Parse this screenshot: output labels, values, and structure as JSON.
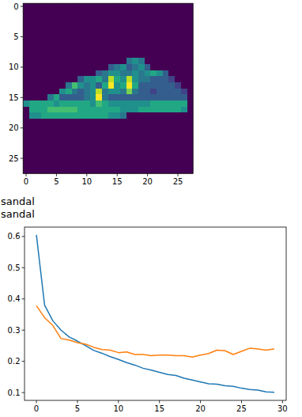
{
  "chart_data": [
    {
      "type": "heatmap",
      "cells": [
        [
          0,
          0,
          0,
          0,
          0,
          0,
          0,
          0,
          0,
          0,
          0,
          0,
          0,
          0,
          0,
          0,
          0,
          0,
          0,
          0,
          0,
          0,
          0,
          0,
          0,
          0,
          0,
          0
        ],
        [
          0,
          0,
          0,
          0,
          0,
          0,
          0,
          0,
          0,
          0,
          0,
          0,
          0,
          0,
          0,
          0,
          0,
          0,
          0,
          0,
          0,
          0,
          0,
          0,
          0,
          0,
          0,
          0
        ],
        [
          0,
          0,
          0,
          0,
          0,
          0,
          0,
          0,
          0,
          0,
          0,
          0,
          0,
          0,
          0,
          0,
          0,
          0,
          0,
          0,
          0,
          0,
          0,
          0,
          0,
          0,
          0,
          0
        ],
        [
          0,
          0,
          0,
          0,
          0,
          0,
          0,
          0,
          0,
          0,
          0,
          0,
          0,
          0,
          0,
          0,
          0,
          0,
          0,
          0,
          0,
          0,
          0,
          0,
          0,
          0,
          0,
          0
        ],
        [
          0,
          0,
          0,
          0,
          0,
          0,
          0,
          0,
          0,
          0,
          0,
          0,
          0,
          0,
          0,
          0,
          0,
          0,
          0,
          0,
          0,
          0,
          0,
          0,
          0,
          0,
          0,
          0
        ],
        [
          0,
          0,
          0,
          0,
          0,
          0,
          0,
          0,
          0,
          0,
          0,
          0,
          0,
          0,
          0,
          0,
          0,
          0,
          0,
          0,
          0,
          0,
          0,
          0,
          0,
          0,
          0,
          0
        ],
        [
          0,
          0,
          0,
          0,
          0,
          0,
          0,
          0,
          0,
          0,
          0,
          0,
          0,
          0,
          0,
          0,
          0,
          0,
          0,
          0,
          0,
          0,
          0,
          0,
          0,
          0,
          0,
          0
        ],
        [
          0,
          0,
          0,
          0,
          0,
          0,
          0,
          0,
          0,
          0,
          0,
          0,
          0,
          0,
          0,
          0,
          0,
          0,
          0,
          0,
          0,
          0,
          0,
          0,
          0,
          0,
          0,
          0
        ],
        [
          0,
          0,
          0,
          0,
          0,
          0,
          0,
          0,
          0,
          0,
          0,
          0,
          0,
          0,
          0,
          0,
          0,
          0,
          0,
          0,
          0,
          0,
          0,
          0,
          0,
          0,
          0,
          0
        ],
        [
          0,
          0,
          0,
          0,
          0,
          0,
          0,
          0,
          0,
          0,
          0,
          0,
          0,
          0,
          0,
          0,
          0,
          0.4,
          0.5,
          0.4,
          0,
          0,
          0,
          0,
          0,
          0,
          0,
          0
        ],
        [
          0,
          0,
          0,
          0,
          0,
          0,
          0,
          0,
          0,
          0,
          0,
          0,
          0,
          0,
          0.3,
          0.4,
          0.5,
          0.3,
          0.4,
          0.5,
          0.3,
          0,
          0,
          0,
          0,
          0,
          0,
          0
        ],
        [
          0,
          0,
          0,
          0,
          0,
          0,
          0,
          0,
          0,
          0,
          0,
          0,
          0.3,
          0.4,
          0.5,
          0.5,
          0.4,
          0.4,
          0.5,
          0.4,
          0.5,
          0.6,
          0.5,
          0.3,
          0,
          0,
          0,
          0
        ],
        [
          0,
          0,
          0,
          0,
          0,
          0,
          0,
          0,
          0,
          0.3,
          0.5,
          0.5,
          0.6,
          0.4,
          0.9,
          0.6,
          0.5,
          0.9,
          0.5,
          0.4,
          0.4,
          0.3,
          0.3,
          0.3,
          0.2,
          0,
          0,
          0
        ],
        [
          0,
          0,
          0,
          0,
          0,
          0,
          0,
          0.4,
          0.7,
          0.5,
          0.4,
          0.5,
          0.3,
          0.6,
          1.0,
          0.5,
          0.6,
          1.0,
          0.6,
          0.3,
          0.3,
          0.3,
          0.3,
          0.3,
          0.3,
          0.2,
          0,
          0
        ],
        [
          0,
          0,
          0,
          0,
          0,
          0,
          0.5,
          0.6,
          0.4,
          0.3,
          0.4,
          0.5,
          0.9,
          0.4,
          0.5,
          0.5,
          0.4,
          0.8,
          0.4,
          0.3,
          0.3,
          0.2,
          0.3,
          0.3,
          0.3,
          0.3,
          0.2,
          0
        ],
        [
          0,
          0,
          0,
          0,
          0.4,
          0.6,
          0.3,
          0.3,
          0.3,
          0.3,
          0.4,
          0.5,
          1.0,
          0.4,
          0.3,
          0.3,
          0.3,
          0.3,
          0.3,
          0.3,
          0.3,
          0.3,
          0.3,
          0.3,
          0.3,
          0.3,
          0.3,
          0
        ],
        [
          0.5,
          0.6,
          0.6,
          0.6,
          0.6,
          0.5,
          0.6,
          0.6,
          0.6,
          0.6,
          0.6,
          0.5,
          0.7,
          0.6,
          0.5,
          0.5,
          0.5,
          0.5,
          0.5,
          0.5,
          0.5,
          0.6,
          0.6,
          0.6,
          0.6,
          0.6,
          0.6,
          0
        ],
        [
          0,
          0.6,
          0.6,
          0.6,
          0.7,
          0.7,
          0.7,
          0.7,
          0.7,
          0.6,
          0.6,
          0.6,
          0.6,
          0.6,
          0.6,
          0.6,
          0.5,
          0.5,
          0.5,
          0.6,
          0.6,
          0.6,
          0.6,
          0.6,
          0.6,
          0.6,
          0.5,
          0
        ],
        [
          0,
          0.5,
          0.5,
          0.6,
          0.6,
          0.6,
          0.6,
          0.6,
          0.6,
          0.6,
          0.6,
          0.6,
          0.6,
          0.6,
          0.5,
          0.5,
          0.4,
          0,
          0,
          0,
          0,
          0,
          0,
          0,
          0,
          0,
          0,
          0
        ],
        [
          0,
          0,
          0,
          0,
          0,
          0,
          0,
          0,
          0,
          0,
          0,
          0,
          0,
          0,
          0,
          0,
          0,
          0,
          0,
          0,
          0,
          0,
          0,
          0,
          0,
          0,
          0,
          0
        ],
        [
          0,
          0,
          0,
          0,
          0,
          0,
          0,
          0,
          0,
          0,
          0,
          0,
          0,
          0,
          0,
          0,
          0,
          0,
          0,
          0,
          0,
          0,
          0,
          0,
          0,
          0,
          0,
          0
        ],
        [
          0,
          0,
          0,
          0,
          0,
          0,
          0,
          0,
          0,
          0,
          0,
          0,
          0,
          0,
          0,
          0,
          0,
          0,
          0,
          0,
          0,
          0,
          0,
          0,
          0,
          0,
          0,
          0
        ],
        [
          0,
          0,
          0,
          0,
          0,
          0,
          0,
          0,
          0,
          0,
          0,
          0,
          0,
          0,
          0,
          0,
          0,
          0,
          0,
          0,
          0,
          0,
          0,
          0,
          0,
          0,
          0,
          0
        ],
        [
          0,
          0,
          0,
          0,
          0,
          0,
          0,
          0,
          0,
          0,
          0,
          0,
          0,
          0,
          0,
          0,
          0,
          0,
          0,
          0,
          0,
          0,
          0,
          0,
          0,
          0,
          0,
          0
        ],
        [
          0,
          0,
          0,
          0,
          0,
          0,
          0,
          0,
          0,
          0,
          0,
          0,
          0,
          0,
          0,
          0,
          0,
          0,
          0,
          0,
          0,
          0,
          0,
          0,
          0,
          0,
          0,
          0
        ],
        [
          0,
          0,
          0,
          0,
          0,
          0,
          0,
          0,
          0,
          0,
          0,
          0,
          0,
          0,
          0,
          0,
          0,
          0,
          0,
          0,
          0,
          0,
          0,
          0,
          0,
          0,
          0,
          0
        ],
        [
          0,
          0,
          0,
          0,
          0,
          0,
          0,
          0,
          0,
          0,
          0,
          0,
          0,
          0,
          0,
          0,
          0,
          0,
          0,
          0,
          0,
          0,
          0,
          0,
          0,
          0,
          0,
          0
        ],
        [
          0,
          0,
          0,
          0,
          0,
          0,
          0,
          0,
          0,
          0,
          0,
          0,
          0,
          0,
          0,
          0,
          0,
          0,
          0,
          0,
          0,
          0,
          0,
          0,
          0,
          0,
          0,
          0
        ]
      ],
      "xlim": [
        -0.5,
        27.5
      ],
      "ylim": [
        27.5,
        -0.5
      ],
      "xticks": [
        0,
        5,
        10,
        15,
        20,
        25
      ],
      "yticks": [
        0,
        5,
        10,
        15,
        20,
        25
      ]
    },
    {
      "type": "line",
      "x": [
        0,
        1,
        2,
        3,
        4,
        5,
        6,
        7,
        8,
        9,
        10,
        11,
        12,
        13,
        14,
        15,
        16,
        17,
        18,
        19,
        20,
        21,
        22,
        23,
        24,
        25,
        26,
        27,
        28,
        29
      ],
      "series": [
        {
          "color": "#1f77b4",
          "values": [
            0.605,
            0.38,
            0.33,
            0.3,
            0.278,
            0.265,
            0.25,
            0.235,
            0.226,
            0.215,
            0.206,
            0.196,
            0.188,
            0.178,
            0.172,
            0.165,
            0.158,
            0.155,
            0.146,
            0.14,
            0.134,
            0.128,
            0.127,
            0.122,
            0.12,
            0.114,
            0.11,
            0.108,
            0.102,
            0.101
          ]
        },
        {
          "color": "#ff7f0e",
          "values": [
            0.378,
            0.34,
            0.315,
            0.273,
            0.268,
            0.26,
            0.255,
            0.245,
            0.238,
            0.236,
            0.228,
            0.23,
            0.222,
            0.222,
            0.218,
            0.22,
            0.22,
            0.218,
            0.218,
            0.214,
            0.22,
            0.225,
            0.236,
            0.234,
            0.222,
            0.232,
            0.242,
            0.24,
            0.236,
            0.24
          ]
        }
      ],
      "xlim": [
        -1.45,
        30.45
      ],
      "ylim": [
        0.075,
        0.63
      ],
      "xticks": [
        0,
        5,
        10,
        15,
        20,
        25,
        30
      ],
      "yticks": [
        0.1,
        0.2,
        0.3,
        0.4,
        0.5,
        0.6
      ]
    }
  ],
  "output_lines": [
    "sandal",
    "sandal"
  ]
}
